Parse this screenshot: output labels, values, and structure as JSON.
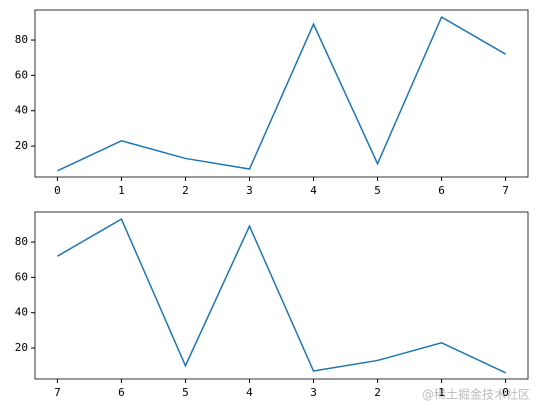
{
  "chart_data": [
    {
      "type": "line",
      "x": [
        0,
        1,
        2,
        3,
        4,
        5,
        6,
        7
      ],
      "series": [
        {
          "color": "#1f77b4",
          "values": [
            6,
            23,
            13,
            7,
            89,
            10,
            93,
            72
          ]
        }
      ],
      "xlim": [
        -0.35,
        7.35
      ],
      "xticks": [
        0,
        1,
        2,
        3,
        4,
        5,
        6,
        7
      ],
      "ylim": [
        2.5,
        97
      ],
      "yticks": [
        20,
        40,
        60,
        80
      ]
    },
    {
      "type": "line",
      "x": [
        0,
        1,
        2,
        3,
        4,
        5,
        6,
        7
      ],
      "series": [
        {
          "color": "#1f77b4",
          "values": [
            6,
            23,
            13,
            7,
            89,
            10,
            93,
            72
          ]
        }
      ],
      "xlim": [
        7.35,
        -0.35
      ],
      "xticks": [
        0,
        1,
        2,
        3,
        4,
        5,
        6,
        7
      ],
      "ylim": [
        2.5,
        97
      ],
      "yticks": [
        20,
        40,
        60,
        80
      ]
    }
  ],
  "watermark": "@稀土掘金技术社区"
}
